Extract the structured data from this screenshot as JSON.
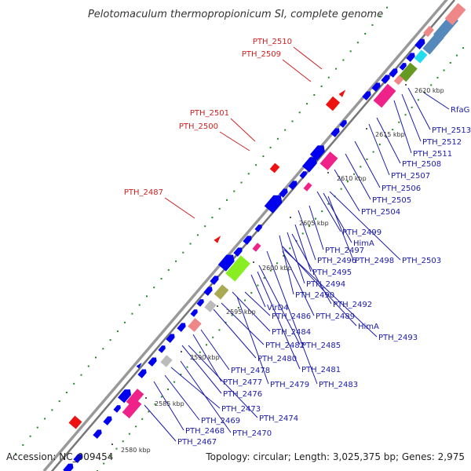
{
  "title": "Pelotomaculum thermopropionicum SI, complete genome",
  "footer": {
    "accession": "Accession: NC_009454",
    "topology": "Topology: circular; Length: 3,025,375 bp; Genes: 2,975"
  },
  "kbp_ticks": [
    "2580 kbp",
    "2585 kbp",
    "2590 kbp",
    "2595 kbp",
    "2600 kbp",
    "2605 kbp",
    "2610 kbp",
    "2615 kbp",
    "2620 kbp"
  ],
  "red_labels": [
    "PTH_2510",
    "PTH_2509",
    "PTH_2501",
    "PTH_2500",
    "PTH_2487"
  ],
  "blue_labels": [
    "RfaG",
    "PTH_2513",
    "PTH_2512",
    "PTH_2511",
    "PTH_2508",
    "PTH_2507",
    "PTH_2506",
    "PTH_2505",
    "PTH_2504",
    "PTH_2499",
    "HimA",
    "PTH_2497",
    "PTH_2496",
    "PTH_2498",
    "PTH_2503",
    "PTH_2495",
    "PTH_2494",
    "PTH_2490",
    "PTH_2492",
    "VirD4",
    "PTH_2486",
    "PTH_2489",
    "HimA",
    "PTH_2484",
    "PTH_2493",
    "PTH_2482",
    "PTH_2485",
    "PTH_2480",
    "PTH_2481",
    "PTH_2478",
    "PTH_2477",
    "PTH_2479",
    "PTH_2483",
    "PTH_2476",
    "PTH_2473",
    "PTH_2474",
    "PTH_2469",
    "PTH_2470",
    "PTH_2468",
    "PTH_2467"
  ],
  "colors": {
    "backbone": "#888888",
    "gene_blue": "#0000ee",
    "gene_pink": "#ee2288",
    "gene_salmon": "#ee8888",
    "gene_lime": "#88ee22",
    "gene_olive": "#aaaa55",
    "gene_green": "#669922",
    "gene_cyan": "#22ddee",
    "gene_steel": "#5588bb",
    "gene_gray": "#bbbbbb",
    "gene_red": "#ee1111",
    "label_blue": "#1a1aaa",
    "label_red": "#cc2222",
    "dots": "#228822"
  }
}
